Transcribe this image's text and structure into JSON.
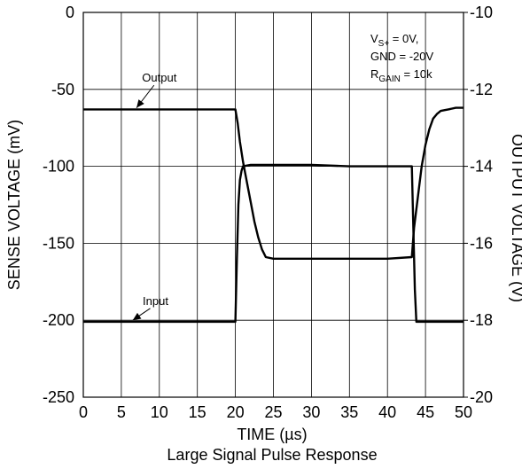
{
  "chart_data": {
    "type": "line",
    "caption": "Large Signal Pulse Response",
    "xlabel": "TIME (µs)",
    "ylabel_left": "SENSE VOLTAGE (mV)",
    "ylabel_right": "OUTPUT VOLTAGE (V)",
    "xlim": [
      0,
      50
    ],
    "ylim_left": [
      -250,
      0
    ],
    "ylim_right": [
      -20,
      -10
    ],
    "x_ticks": [
      0,
      5,
      10,
      15,
      20,
      25,
      30,
      35,
      40,
      45,
      50
    ],
    "y_left_ticks": [
      0,
      -50,
      -100,
      -150,
      -200,
      -250
    ],
    "y_right_ticks": [
      -10,
      -12,
      -14,
      -16,
      -18,
      -20
    ],
    "x_tick_labels": [
      "0",
      "5",
      "10",
      "15",
      "20",
      "25",
      "30",
      "35",
      "40",
      "45",
      "50"
    ],
    "y_left_tick_labels": [
      "0",
      "-50",
      "-100",
      "-150",
      "-200",
      "-250"
    ],
    "y_right_tick_labels": [
      "-10",
      "-12",
      "-14",
      "-16",
      "-18",
      "-20"
    ],
    "grid": true,
    "conditions": {
      "line1_main": "V",
      "line1_sub": "S+",
      "line1_rest": " = 0V,",
      "line2": "GND = -20V",
      "line3_main": "R",
      "line3_sub": "GAIN",
      "line3_rest": " = 10k"
    },
    "annotations": [
      {
        "text": "Output",
        "x": 10,
        "y": -45,
        "arrow_to": [
          7,
          -62
        ]
      },
      {
        "text": "Input",
        "x": 9.5,
        "y": -190,
        "arrow_to": [
          6.5,
          -200
        ]
      }
    ],
    "series": [
      {
        "name": "Output",
        "axis": "left",
        "points": [
          [
            0,
            -63
          ],
          [
            20,
            -63
          ],
          [
            20.3,
            -72
          ],
          [
            20.6,
            -84
          ],
          [
            21,
            -97
          ],
          [
            21.5,
            -110
          ],
          [
            22,
            -123
          ],
          [
            22.5,
            -136
          ],
          [
            23,
            -146
          ],
          [
            23.5,
            -154
          ],
          [
            24,
            -159
          ],
          [
            25,
            -160
          ],
          [
            30,
            -160
          ],
          [
            35,
            -160
          ],
          [
            40,
            -160
          ],
          [
            43.2,
            -159
          ],
          [
            43.5,
            -140
          ],
          [
            44,
            -120
          ],
          [
            44.5,
            -100
          ],
          [
            45,
            -86
          ],
          [
            45.5,
            -76
          ],
          [
            46,
            -69
          ],
          [
            46.5,
            -66
          ],
          [
            47,
            -64
          ],
          [
            48,
            -63
          ],
          [
            49,
            -62
          ],
          [
            50,
            -62
          ]
        ]
      },
      {
        "name": "Input",
        "axis": "left",
        "points": [
          [
            0,
            -201
          ],
          [
            20,
            -201
          ],
          [
            20.2,
            -160
          ],
          [
            20.4,
            -125
          ],
          [
            20.6,
            -109
          ],
          [
            20.8,
            -103
          ],
          [
            21,
            -100
          ],
          [
            22,
            -99
          ],
          [
            25,
            -99
          ],
          [
            30,
            -99
          ],
          [
            35,
            -100
          ],
          [
            40,
            -100
          ],
          [
            43.2,
            -100
          ],
          [
            43.4,
            -140
          ],
          [
            43.6,
            -180
          ],
          [
            43.8,
            -201
          ],
          [
            45,
            -201
          ],
          [
            50,
            -201
          ]
        ]
      }
    ]
  }
}
